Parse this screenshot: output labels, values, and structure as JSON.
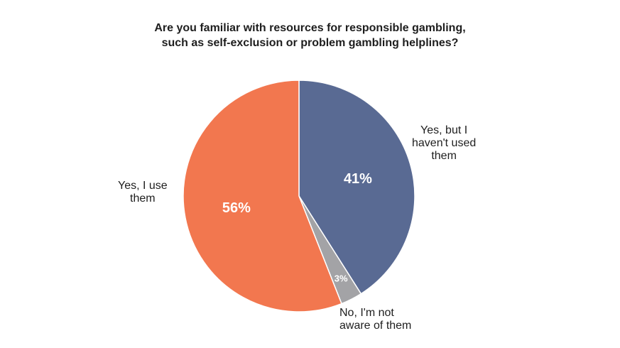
{
  "chart_data": {
    "type": "pie",
    "title_lines": [
      "Are you familiar with resources for responsible gambling,",
      "such as self-exclusion or problem gambling helplines?"
    ],
    "slices": [
      {
        "name": "Yes, but I haven't used them",
        "label_lines": [
          "Yes, but I",
          "haven't used",
          "them"
        ],
        "value": 41,
        "display": "41%",
        "color": "#596a93"
      },
      {
        "name": "No, I'm not aware of them",
        "label_lines": [
          "No, I'm not",
          "aware of them"
        ],
        "value": 3,
        "display": "3%",
        "color": "#a3a3a6"
      },
      {
        "name": "Yes, I use them",
        "label_lines": [
          "Yes, I use",
          "them"
        ],
        "value": 56,
        "display": "56%",
        "color": "#f2774f"
      }
    ],
    "start": "12 o'clock",
    "direction": "clockwise"
  }
}
